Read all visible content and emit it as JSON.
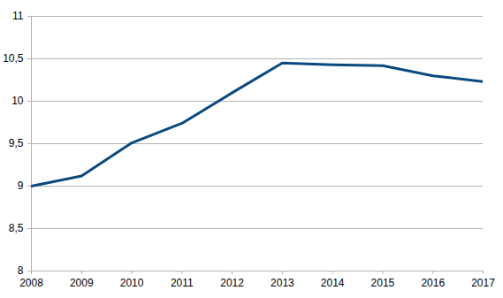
{
  "chart_data": {
    "type": "line",
    "x": [
      2008,
      2009,
      2010,
      2011,
      2012,
      2013,
      2014,
      2015,
      2016,
      2017
    ],
    "values": [
      9.0,
      9.12,
      9.51,
      9.74,
      10.1,
      10.45,
      10.43,
      10.42,
      10.3,
      10.23
    ],
    "color": "#0b4a80",
    "xlim": [
      2008,
      2017
    ],
    "xticks": [
      2008,
      2009,
      2010,
      2011,
      2012,
      2013,
      2014,
      2015,
      2016,
      2017
    ],
    "ylim": [
      8,
      11
    ],
    "yticks": [
      8,
      {
        "value": 8.5,
        "label": "8,5"
      },
      9,
      {
        "value": 9.5,
        "label": "9,5"
      },
      10,
      {
        "value": 10.5,
        "label": "10,5"
      },
      11
    ],
    "grid": true
  }
}
